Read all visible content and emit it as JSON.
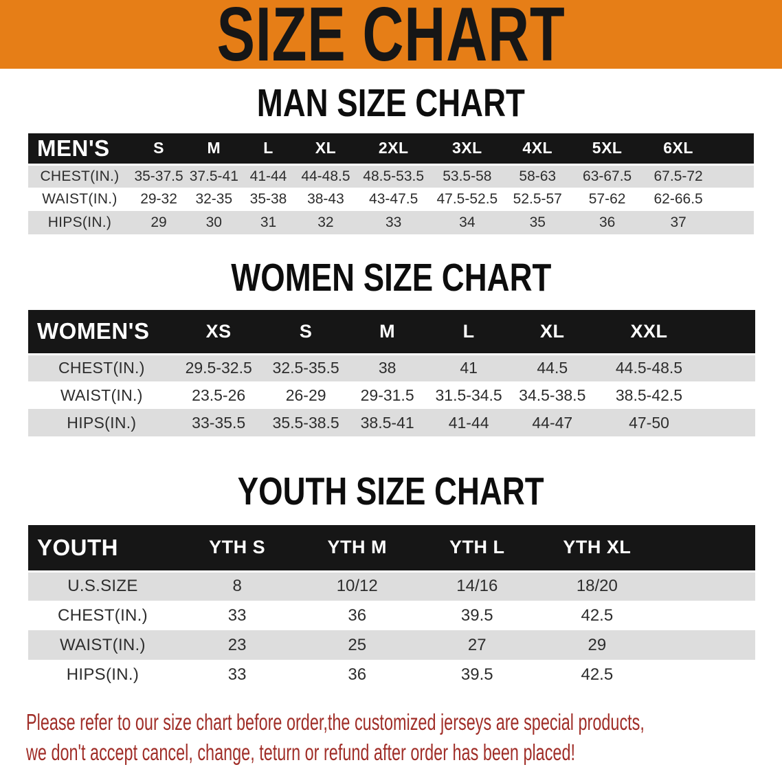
{
  "banner": {
    "title": "SIZE CHART"
  },
  "colors": {
    "banner_bg": "#E67E17",
    "header_bar": "#161616",
    "row_stripe": "#DDDDDD",
    "notice_text": "#A02E28"
  },
  "sections": [
    {
      "id": "men",
      "heading": "MAN SIZE CHART",
      "table": {
        "label": "MEN'S",
        "columns": [
          "S",
          "M",
          "L",
          "XL",
          "2XL",
          "3XL",
          "4XL",
          "5XL",
          "6XL"
        ],
        "rows": [
          {
            "label": "CHEST(IN.)",
            "values": [
              "35-37.5",
              "37.5-41",
              "41-44",
              "44-48.5",
              "48.5-53.5",
              "53.5-58",
              "58-63",
              "63-67.5",
              "67.5-72"
            ]
          },
          {
            "label": "WAIST(IN.)",
            "values": [
              "29-32",
              "32-35",
              "35-38",
              "38-43",
              "43-47.5",
              "47.5-52.5",
              "52.5-57",
              "57-62",
              "62-66.5"
            ]
          },
          {
            "label": "HIPS(IN.)",
            "values": [
              "29",
              "30",
              "31",
              "32",
              "33",
              "34",
              "35",
              "36",
              "37"
            ]
          }
        ]
      }
    },
    {
      "id": "women",
      "heading": "WOMEN SIZE CHART",
      "table": {
        "label": "WOMEN'S",
        "columns": [
          "XS",
          "S",
          "M",
          "L",
          "XL",
          "XXL"
        ],
        "rows": [
          {
            "label": "CHEST(IN.)",
            "values": [
              "29.5-32.5",
              "32.5-35.5",
              "38",
              "41",
              "44.5",
              "44.5-48.5"
            ]
          },
          {
            "label": "WAIST(IN.)",
            "values": [
              "23.5-26",
              "26-29",
              "29-31.5",
              "31.5-34.5",
              "34.5-38.5",
              "38.5-42.5"
            ]
          },
          {
            "label": "HIPS(IN.)",
            "values": [
              "33-35.5",
              "35.5-38.5",
              "38.5-41",
              "41-44",
              "44-47",
              "47-50"
            ]
          }
        ]
      }
    },
    {
      "id": "youth",
      "heading": "YOUTH SIZE CHART",
      "table": {
        "label": "YOUTH",
        "columns": [
          "YTH S",
          "YTH M",
          "YTH L",
          "YTH XL"
        ],
        "rows": [
          {
            "label": "U.S.SIZE",
            "values": [
              "8",
              "10/12",
              "14/16",
              "18/20"
            ]
          },
          {
            "label": "CHEST(IN.)",
            "values": [
              "33",
              "36",
              "39.5",
              "42.5"
            ]
          },
          {
            "label": "WAIST(IN.)",
            "values": [
              "23",
              "25",
              "27",
              "29"
            ]
          },
          {
            "label": "HIPS(IN.)",
            "values": [
              "33",
              "36",
              "39.5",
              "42.5"
            ]
          }
        ]
      }
    }
  ],
  "footer": {
    "line1": "Please refer to our size chart before order,the customized jerseys are special products,",
    "line2": "we don't accept cancel, change, teturn or refund after order has been placed!"
  }
}
